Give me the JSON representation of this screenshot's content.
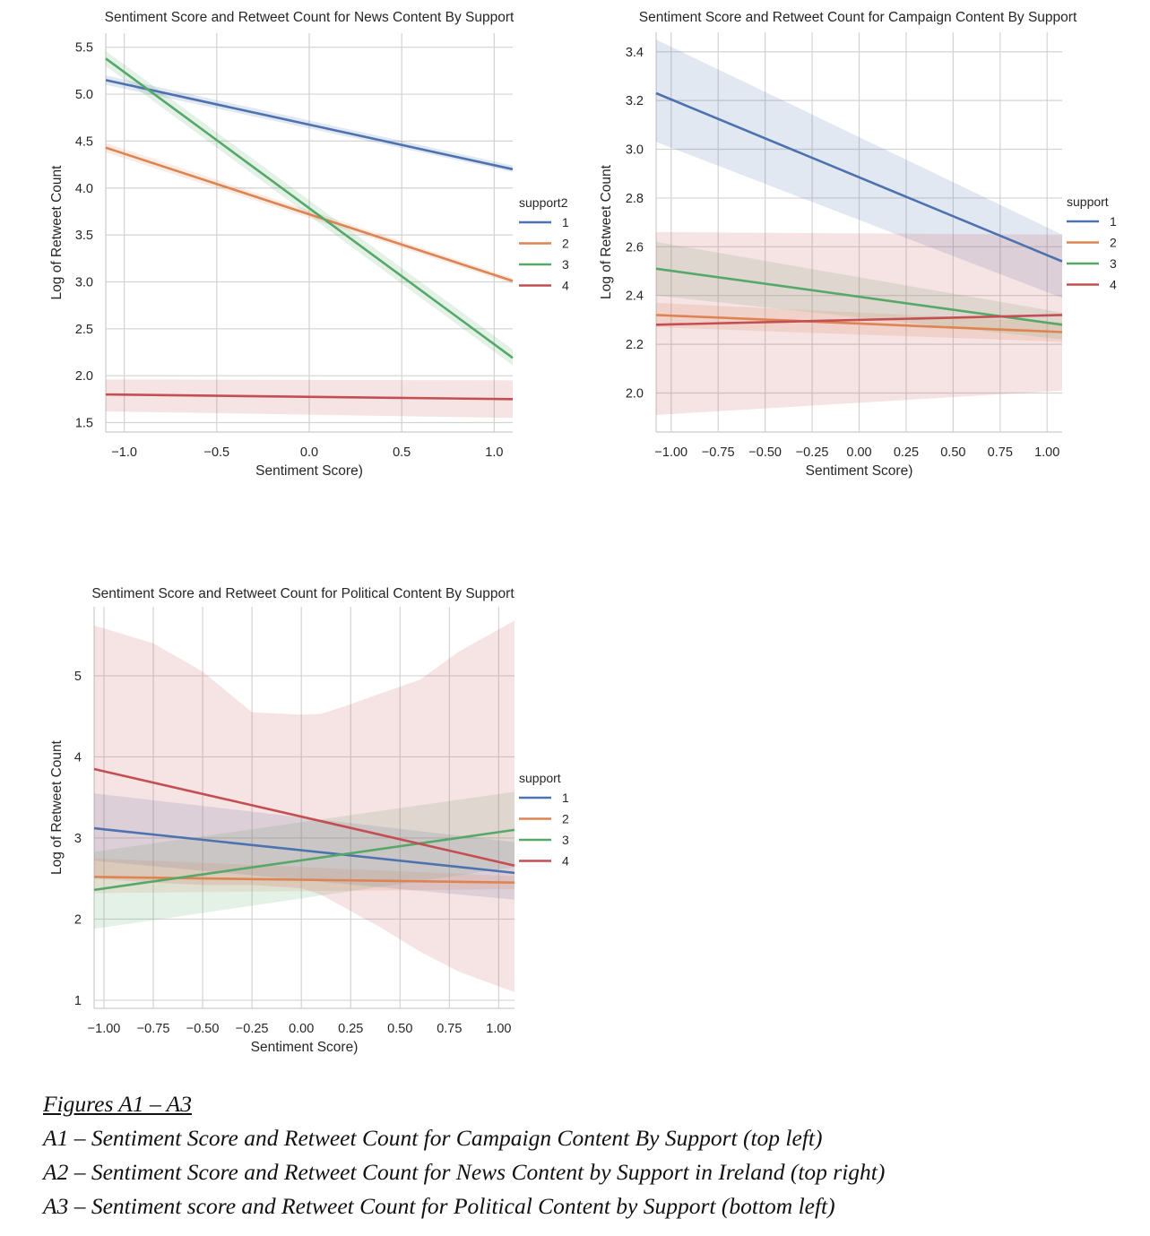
{
  "chart_data": [
    {
      "type": "line",
      "title": "Sentiment Score and Retweet Count for News Content By Support",
      "xlabel": "Sentiment Score)",
      "ylabel": "Log of Retweet Count",
      "xlim": [
        -1.1,
        1.1
      ],
      "ylim": [
        1.4,
        5.65
      ],
      "xticks": [
        -1.0,
        -0.5,
        0.0,
        0.5,
        1.0
      ],
      "xtick_labels": [
        "−1.0",
        "−0.5",
        "0.0",
        "0.5",
        "1.0"
      ],
      "yticks": [
        1.5,
        2.0,
        2.5,
        3.0,
        3.5,
        4.0,
        4.5,
        5.0,
        5.5
      ],
      "ytick_labels": [
        "1.5",
        "2.0",
        "2.5",
        "3.0",
        "3.5",
        "4.0",
        "4.5",
        "5.0",
        "5.5"
      ],
      "grid": true,
      "legend": {
        "title": "support2",
        "placement": "right"
      },
      "series": [
        {
          "name": "1",
          "color": "#4c72b0",
          "x": [
            -1.1,
            1.1
          ],
          "y": [
            5.15,
            4.2
          ],
          "ci_lower": [
            5.1,
            4.17
          ],
          "ci_upper": [
            5.2,
            4.24
          ]
        },
        {
          "name": "2",
          "color": "#dd8452",
          "x": [
            -1.1,
            1.1
          ],
          "y": [
            4.43,
            3.01
          ],
          "ci_lower": [
            4.38,
            2.98
          ],
          "ci_upper": [
            4.48,
            3.04
          ]
        },
        {
          "name": "3",
          "color": "#55a868",
          "x": [
            -1.1,
            1.1
          ],
          "y": [
            5.38,
            2.19
          ],
          "ci_lower": [
            5.3,
            2.11
          ],
          "ci_upper": [
            5.46,
            2.28
          ]
        },
        {
          "name": "4",
          "color": "#c44e52",
          "x": [
            -1.1,
            1.1
          ],
          "y": [
            1.8,
            1.75
          ],
          "ci_lower": [
            1.62,
            1.55
          ],
          "ci_upper": [
            1.96,
            1.95
          ]
        }
      ]
    },
    {
      "type": "line",
      "title": "Sentiment Score and Retweet Count for Campaign Content By Support",
      "xlabel": "Sentiment Score)",
      "ylabel": "Log of Retweet Count",
      "xlim": [
        -1.08,
        1.08
      ],
      "ylim": [
        1.84,
        3.48
      ],
      "xticks": [
        -1.0,
        -0.75,
        -0.5,
        -0.25,
        0.0,
        0.25,
        0.5,
        0.75,
        1.0
      ],
      "xtick_labels": [
        "−1.00",
        "−0.75",
        "−0.50",
        "−0.25",
        "0.00",
        "0.25",
        "0.50",
        "0.75",
        "1.00"
      ],
      "yticks": [
        2.0,
        2.2,
        2.4,
        2.6,
        2.8,
        3.0,
        3.2,
        3.4
      ],
      "ytick_labels": [
        "2.0",
        "2.2",
        "2.4",
        "2.6",
        "2.8",
        "3.0",
        "3.2",
        "3.4"
      ],
      "grid": true,
      "legend": {
        "title": "support",
        "placement": "right"
      },
      "series": [
        {
          "name": "1",
          "color": "#4c72b0",
          "x": [
            -1.08,
            1.08
          ],
          "y": [
            3.23,
            2.54
          ],
          "ci_lower": [
            3.03,
            2.39
          ],
          "ci_upper": [
            3.45,
            2.65
          ]
        },
        {
          "name": "2",
          "color": "#dd8452",
          "x": [
            -1.08,
            1.08
          ],
          "y": [
            2.32,
            2.25
          ],
          "ci_lower": [
            2.27,
            2.21
          ],
          "ci_upper": [
            2.37,
            2.29
          ]
        },
        {
          "name": "3",
          "color": "#55a868",
          "x": [
            -1.08,
            1.08
          ],
          "y": [
            2.51,
            2.28
          ],
          "ci_lower": [
            2.4,
            2.22
          ],
          "ci_upper": [
            2.62,
            2.33
          ]
        },
        {
          "name": "4",
          "color": "#c44e52",
          "x": [
            -1.08,
            1.08
          ],
          "y": [
            2.28,
            2.32
          ],
          "ci_lower": [
            1.91,
            2.01
          ],
          "ci_upper": [
            2.66,
            2.65
          ]
        }
      ]
    },
    {
      "type": "line",
      "title": "Sentiment Score and Retweet Count for Political Content By Support",
      "xlabel": "Sentiment Score)",
      "ylabel": "Log of Retweet Count",
      "xlim": [
        -1.05,
        1.08
      ],
      "ylim": [
        0.9,
        5.85
      ],
      "xticks": [
        -1.0,
        -0.75,
        -0.5,
        -0.25,
        0.0,
        0.25,
        0.5,
        0.75,
        1.0
      ],
      "xtick_labels": [
        "−1.00",
        "−0.75",
        "−0.50",
        "−0.25",
        "0.00",
        "0.25",
        "0.50",
        "0.75",
        "1.00"
      ],
      "yticks": [
        1,
        2,
        3,
        4,
        5
      ],
      "ytick_labels": [
        "1",
        "2",
        "3",
        "4",
        "5"
      ],
      "grid": true,
      "legend": {
        "title": "support",
        "placement": "right"
      },
      "series": [
        {
          "name": "1",
          "color": "#4c72b0",
          "x": [
            -1.05,
            1.08
          ],
          "y": [
            3.12,
            2.57
          ],
          "ci_lower": [
            2.72,
            2.24
          ],
          "ci_upper": [
            3.55,
            2.95
          ]
        },
        {
          "name": "2",
          "color": "#dd8452",
          "x": [
            -1.05,
            1.08
          ],
          "y": [
            2.52,
            2.45
          ],
          "ci_lower": [
            2.32,
            2.37
          ],
          "ci_upper": [
            2.75,
            2.53
          ]
        },
        {
          "name": "3",
          "color": "#55a868",
          "x": [
            -1.05,
            1.08
          ],
          "y": [
            2.36,
            3.1
          ],
          "ci_lower": [
            1.88,
            2.64
          ],
          "ci_upper": [
            2.83,
            3.57
          ]
        },
        {
          "name": "4",
          "color": "#c44e52",
          "x": [
            -1.05,
            1.08
          ],
          "y": [
            3.85,
            2.66
          ],
          "ci_lower": [
            1.85,
            1.1
          ],
          "ci_upper": [
            5.6,
            5.68
          ],
          "ci_x": [
            -1.05,
            -0.75,
            -0.5,
            -0.3,
            -0.25,
            0.0,
            0.1,
            0.25,
            0.4,
            0.6,
            0.8,
            1.08
          ],
          "ci_upper_curve": [
            5.62,
            5.4,
            5.05,
            4.65,
            4.55,
            4.52,
            4.53,
            4.65,
            4.78,
            4.95,
            5.3,
            5.68
          ],
          "ci_lower_curve": [
            2.5,
            2.45,
            2.42,
            2.42,
            2.42,
            2.38,
            2.3,
            2.1,
            1.9,
            1.6,
            1.35,
            1.1
          ]
        }
      ]
    }
  ],
  "caption": {
    "heading": "Figures A1 – A3",
    "lines": [
      "A1 – Sentiment Score and Retweet Count for Campaign Content By Support (top left)",
      "A2 – Sentiment Score and Retweet Count for News Content by Support in Ireland (top right)",
      "A3 – Sentiment score and Retweet Count for Political Content by Support (bottom left)"
    ]
  }
}
